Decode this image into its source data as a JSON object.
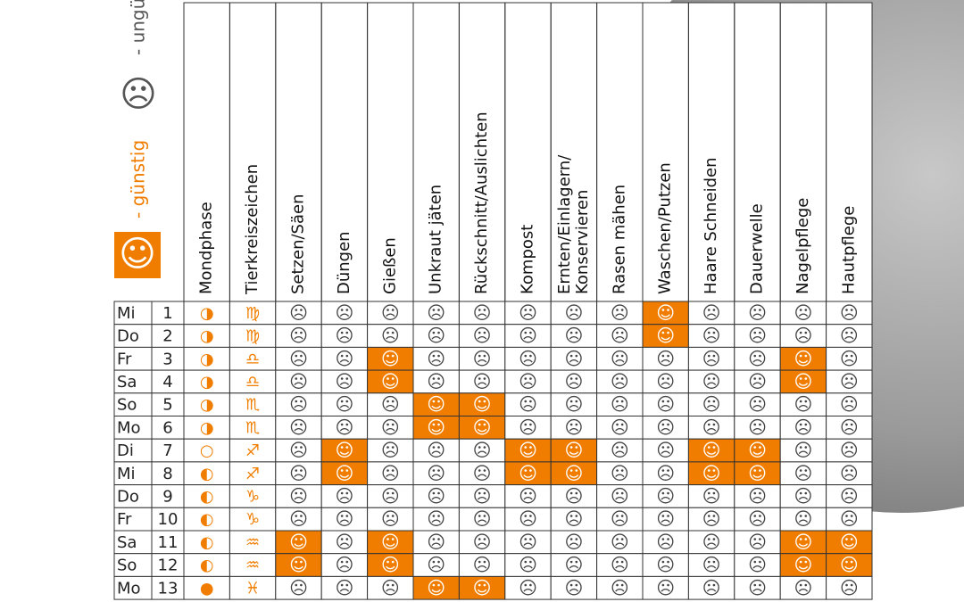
{
  "legend": {
    "good_icon": "☺",
    "good_label": "- günstig",
    "bad_icon": "☹",
    "bad_label": "- ungünstig"
  },
  "table": {
    "columns": [
      "Mondphase",
      "Tierkreiszeichen",
      "Setzen/Säen",
      "Düngen",
      "Gießen",
      "Unkraut jäten",
      "Rückschnitt/Auslichten",
      "Kompost",
      "Ernten/Einlagern/\nKonservieren",
      "Rasen mähen",
      "Waschen/Putzen",
      "Haare Schneiden",
      "Dauerwelle",
      "Nagelpflege",
      "Hautpflege"
    ],
    "rows": [
      [
        "Mi",
        1,
        "◑",
        "♍",
        "☹",
        "☹",
        "☹",
        "☹",
        "☹",
        "☹",
        "☹",
        "☹",
        "☺",
        "☹",
        "☹",
        "☹",
        "☹"
      ],
      [
        "Do",
        2,
        "◑",
        "♍",
        "☹",
        "☹",
        "☹",
        "☹",
        "☹",
        "☹",
        "☹",
        "☹",
        "☺",
        "☹",
        "☹",
        "☹",
        "☹"
      ],
      [
        "Fr",
        3,
        "◑",
        "♎",
        "☹",
        "☹",
        "☺",
        "☹",
        "☹",
        "☹",
        "☹",
        "☹",
        "☹",
        "☹",
        "☹",
        "☺",
        "☹"
      ],
      [
        "Sa",
        4,
        "◑",
        "♎",
        "☹",
        "☹",
        "☺",
        "☹",
        "☹",
        "☹",
        "☹",
        "☹",
        "☹",
        "☹",
        "☹",
        "☺",
        "☹"
      ],
      [
        "So",
        5,
        "◑",
        "♏",
        "☹",
        "☹",
        "☹",
        "☺",
        "☺",
        "☹",
        "☹",
        "☹",
        "☹",
        "☹",
        "☹",
        "☹",
        "☹"
      ],
      [
        "Mo",
        6,
        "◑",
        "♏",
        "☹",
        "☹",
        "☹",
        "☺",
        "☺",
        "☹",
        "☹",
        "☹",
        "☹",
        "☹",
        "☹",
        "☹",
        "☹"
      ],
      [
        "Di",
        7,
        "○",
        "♐",
        "☹",
        "☺",
        "☹",
        "☹",
        "☹",
        "☺",
        "☺",
        "☹",
        "☹",
        "☺",
        "☺",
        "☹",
        "☹"
      ],
      [
        "Mi",
        8,
        "◐",
        "♐",
        "☹",
        "☺",
        "☹",
        "☹",
        "☹",
        "☺",
        "☺",
        "☹",
        "☹",
        "☺",
        "☺",
        "☹",
        "☹"
      ],
      [
        "Do",
        9,
        "◐",
        "♑",
        "☹",
        "☹",
        "☹",
        "☹",
        "☹",
        "☹",
        "☹",
        "☹",
        "☹",
        "☹",
        "☹",
        "☹",
        "☹"
      ],
      [
        "Fr",
        10,
        "◐",
        "♑",
        "☹",
        "☹",
        "☹",
        "☹",
        "☹",
        "☹",
        "☹",
        "☹",
        "☹",
        "☹",
        "☹",
        "☹",
        "☹"
      ],
      [
        "Sa",
        11,
        "◐",
        "♒",
        "☺",
        "☹",
        "☺",
        "☹",
        "☹",
        "☹",
        "☹",
        "☹",
        "☹",
        "☹",
        "☹",
        "☺",
        "☺"
      ],
      [
        "So",
        12,
        "◐",
        "♒",
        "☺",
        "☹",
        "☺",
        "☹",
        "☹",
        "☹",
        "☹",
        "☹",
        "☹",
        "☹",
        "☹",
        "☺",
        "☺"
      ],
      [
        "Mo",
        13,
        "●",
        "♓",
        "☹",
        "☹",
        "☹",
        "☺",
        "☺",
        "☹",
        "☹",
        "☹",
        "☹",
        "☹",
        "☹",
        "☹",
        "☹"
      ]
    ]
  }
}
